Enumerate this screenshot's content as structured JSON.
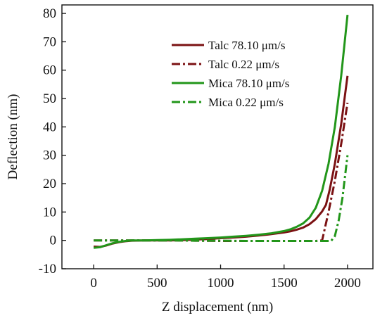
{
  "chart_data": {
    "type": "line",
    "title": "",
    "xlabel": "Z displacement (nm)",
    "ylabel": "Deflection (nm)",
    "xlim": [
      -250,
      2200
    ],
    "ylim": [
      -10,
      83
    ],
    "x_ticks": [
      0,
      500,
      1000,
      1500,
      2000
    ],
    "x_tick_labels": [
      "0",
      "500",
      "1000",
      "1500",
      "2000"
    ],
    "y_ticks": [
      -10,
      0,
      10,
      20,
      30,
      40,
      50,
      60,
      70,
      80
    ],
    "y_tick_labels": [
      "-10",
      "0",
      "10",
      "20",
      "30",
      "40",
      "50",
      "60",
      "70",
      "80"
    ],
    "grid": false,
    "legend_position": "top-right",
    "series": [
      {
        "name": "Talc 78.10 μm/s",
        "color": "#7b1113",
        "dash": "solid",
        "points": [
          [
            0,
            -2.2
          ],
          [
            50,
            -2.3
          ],
          [
            100,
            -1.8
          ],
          [
            150,
            -1.1
          ],
          [
            200,
            -0.6
          ],
          [
            250,
            -0.3
          ],
          [
            300,
            -0.1
          ],
          [
            400,
            0
          ],
          [
            500,
            0
          ],
          [
            600,
            0
          ],
          [
            700,
            0.1
          ],
          [
            800,
            0.3
          ],
          [
            900,
            0.5
          ],
          [
            1000,
            0.8
          ],
          [
            1100,
            1.0
          ],
          [
            1200,
            1.3
          ],
          [
            1300,
            1.7
          ],
          [
            1400,
            2.2
          ],
          [
            1500,
            2.8
          ],
          [
            1550,
            3.2
          ],
          [
            1600,
            3.8
          ],
          [
            1650,
            4.5
          ],
          [
            1700,
            5.7
          ],
          [
            1750,
            7.5
          ],
          [
            1800,
            10.2
          ],
          [
            1830,
            12.5
          ],
          [
            1860,
            18
          ],
          [
            1900,
            27
          ],
          [
            1950,
            41
          ],
          [
            2000,
            58
          ]
        ]
      },
      {
        "name": "Talc 0.22 μm/s",
        "color": "#7b1113",
        "dash": "dashdot",
        "points": [
          [
            0,
            0
          ],
          [
            200,
            0
          ],
          [
            400,
            0
          ],
          [
            600,
            0
          ],
          [
            800,
            -0.1
          ],
          [
            1000,
            -0.2
          ],
          [
            1200,
            -0.2
          ],
          [
            1400,
            -0.2
          ],
          [
            1600,
            -0.2
          ],
          [
            1750,
            -0.2
          ],
          [
            1800,
            0
          ],
          [
            1850,
            10
          ],
          [
            1900,
            21
          ],
          [
            1950,
            34
          ],
          [
            2000,
            48.5
          ]
        ]
      },
      {
        "name": "Mica 78.10 μm/s",
        "color": "#22961a",
        "dash": "solid",
        "points": [
          [
            0,
            -2.6
          ],
          [
            50,
            -2.4
          ],
          [
            100,
            -1.7
          ],
          [
            150,
            -1.0
          ],
          [
            200,
            -0.5
          ],
          [
            250,
            -0.2
          ],
          [
            300,
            0
          ],
          [
            400,
            0
          ],
          [
            500,
            0.1
          ],
          [
            600,
            0.2
          ],
          [
            700,
            0.4
          ],
          [
            800,
            0.6
          ],
          [
            900,
            0.8
          ],
          [
            1000,
            1.0
          ],
          [
            1100,
            1.3
          ],
          [
            1200,
            1.6
          ],
          [
            1300,
            2.0
          ],
          [
            1400,
            2.5
          ],
          [
            1500,
            3.3
          ],
          [
            1550,
            3.9
          ],
          [
            1600,
            4.8
          ],
          [
            1650,
            6.0
          ],
          [
            1700,
            8.0
          ],
          [
            1750,
            11.5
          ],
          [
            1800,
            17.5
          ],
          [
            1850,
            27
          ],
          [
            1900,
            40
          ],
          [
            1950,
            58
          ],
          [
            2000,
            79.5
          ]
        ]
      },
      {
        "name": "Mica 0.22 μm/s",
        "color": "#22961a",
        "dash": "dashdot",
        "points": [
          [
            0,
            0
          ],
          [
            200,
            0
          ],
          [
            400,
            0
          ],
          [
            600,
            0
          ],
          [
            800,
            -0.1
          ],
          [
            1000,
            -0.1
          ],
          [
            1200,
            -0.2
          ],
          [
            1400,
            -0.2
          ],
          [
            1600,
            -0.2
          ],
          [
            1800,
            -0.2
          ],
          [
            1870,
            -0.2
          ],
          [
            1900,
            1.5
          ],
          [
            1930,
            7
          ],
          [
            1960,
            15
          ],
          [
            2000,
            30
          ]
        ]
      }
    ]
  }
}
